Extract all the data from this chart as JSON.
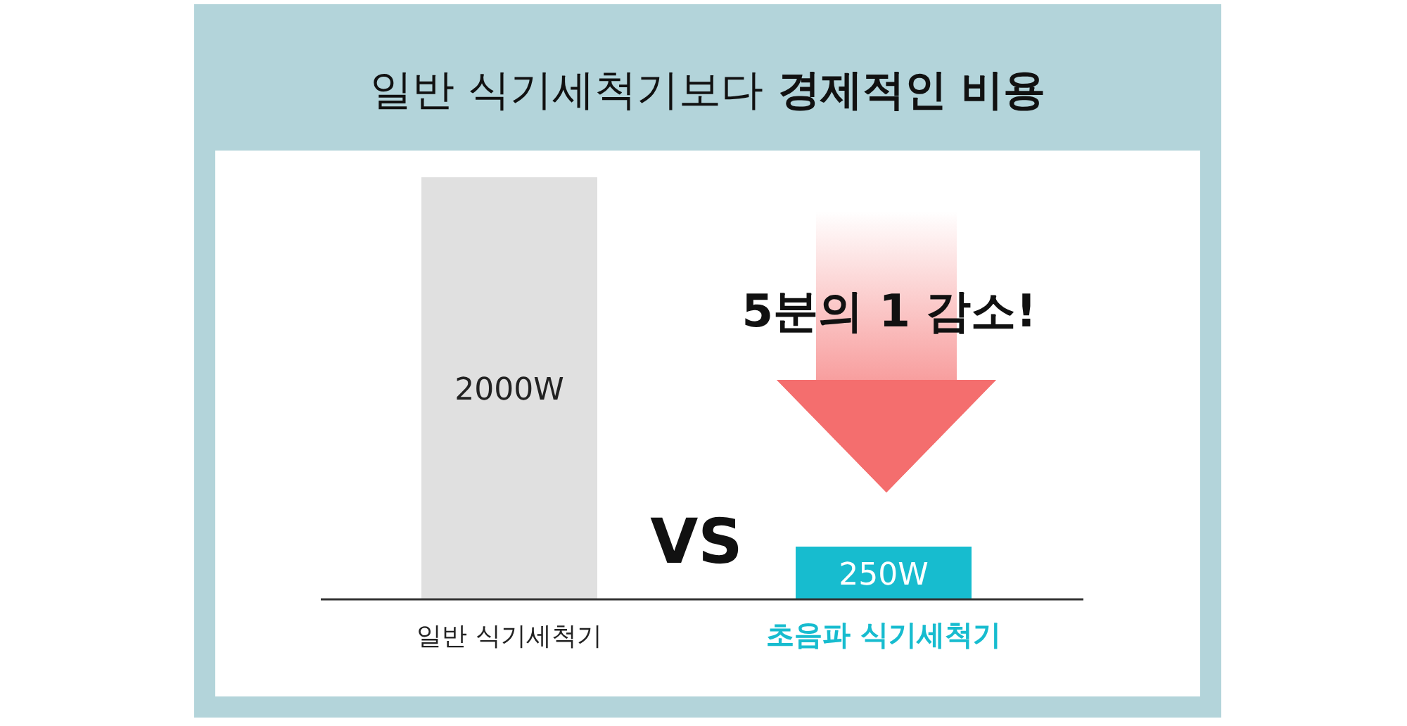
{
  "chart_data": {
    "type": "bar",
    "title": "일반 식기세척기보다 경제적인 비용",
    "categories": [
      "일반 식기세척기",
      "초음파 식기세척기"
    ],
    "values": [
      2000,
      250
    ],
    "colors": [
      "#e0e0e0",
      "#17bccf"
    ],
    "value_labels": [
      "2000W",
      "250W"
    ],
    "annotations": [
      "VS",
      "5분의 1 감소!"
    ]
  }
}
